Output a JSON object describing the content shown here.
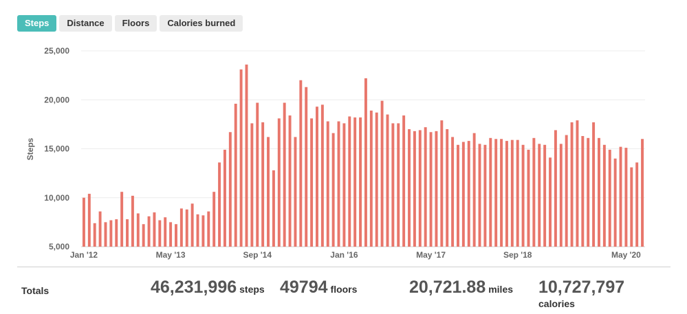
{
  "tabs": [
    {
      "label": "Steps",
      "active": true
    },
    {
      "label": "Distance",
      "active": false
    },
    {
      "label": "Floors",
      "active": false
    },
    {
      "label": "Calories burned",
      "active": false
    }
  ],
  "colors": {
    "bar": "#e8766b",
    "tab_active": "#4bbdb8",
    "grid": "#ececec"
  },
  "chart_data": {
    "type": "bar",
    "ylabel": "Steps",
    "xlabel": "",
    "ylim": [
      5000,
      25000
    ],
    "yticks": [
      5000,
      10000,
      15000,
      20000,
      25000
    ],
    "ytick_labels": [
      "5,000",
      "10,000",
      "15,000",
      "20,000",
      "25,000"
    ],
    "xtick_labels": [
      "Jan '12",
      "May '13",
      "Sep '14",
      "Jan '16",
      "May '17",
      "Sep '18",
      "May '20"
    ],
    "xtick_positions": [
      0,
      16,
      32,
      48,
      64,
      80,
      100
    ],
    "grid": true,
    "values": [
      10000,
      10400,
      7400,
      8600,
      7500,
      7700,
      7800,
      10600,
      7800,
      10200,
      8400,
      7300,
      8100,
      8500,
      7700,
      8000,
      7500,
      7300,
      8900,
      8800,
      9400,
      8300,
      8200,
      8600,
      10600,
      13600,
      14900,
      16700,
      19600,
      23100,
      23600,
      17600,
      19700,
      17700,
      16200,
      12800,
      18100,
      19700,
      18400,
      16200,
      22000,
      21300,
      18100,
      19300,
      19500,
      17800,
      16600,
      17800,
      17600,
      18300,
      18200,
      18200,
      22200,
      18900,
      18700,
      19900,
      18500,
      17600,
      17600,
      18400,
      17000,
      16800,
      16900,
      17200,
      16700,
      16800,
      17900,
      17000,
      16200,
      15400,
      15700,
      15800,
      16600,
      15500,
      15400,
      16100,
      16000,
      16000,
      15800,
      15900,
      15900,
      15400,
      14900,
      16100,
      15500,
      15400,
      14100,
      16900,
      15500,
      16400,
      17700,
      17900,
      16300,
      16100,
      17700,
      16100,
      15400,
      14900,
      14000,
      15200,
      15100,
      13100,
      13600,
      16000
    ]
  },
  "totals": {
    "label": "Totals",
    "steps_value": "46,231,996",
    "steps_unit": "steps",
    "floors_value": "49794",
    "floors_unit": "floors",
    "miles_value": "20,721.88",
    "miles_unit": "miles",
    "calories_value": "10,727,797",
    "calories_unit": "calories"
  }
}
